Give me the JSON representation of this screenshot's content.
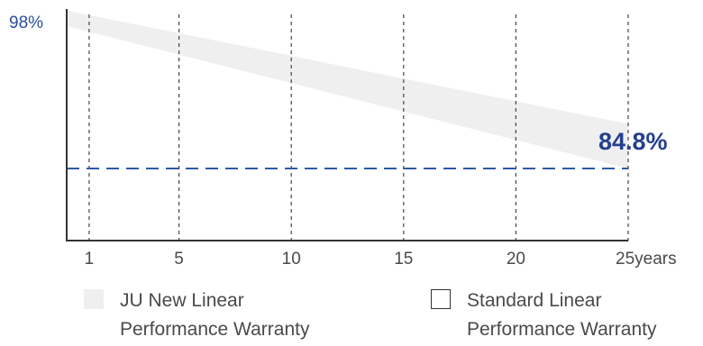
{
  "chart_data": {
    "type": "area",
    "title": "",
    "xlabel": "",
    "ylabel": "",
    "x_unit_label": "years",
    "x_ticks": [
      1,
      5,
      10,
      15,
      20,
      25
    ],
    "y_labels": {
      "top": "98%",
      "end": "84.8%"
    },
    "y_top_value": 98,
    "threshold_value": 84.8,
    "xlim": [
      0,
      25
    ],
    "series": [
      {
        "name": "JU New Linear Performance Warranty",
        "type": "band",
        "x": [
          0,
          25
        ],
        "upper": [
          99,
          88.8
        ],
        "lower": [
          97.6,
          84.8
        ],
        "color": "#efeff0"
      }
    ],
    "threshold_line_color": "#2f5aa8",
    "grid": "vertical-dashed",
    "legend_position": "bottom"
  },
  "legend": {
    "items": [
      {
        "lines": [
          "JU New Linear",
          "Performance Warranty"
        ],
        "swatch": "#efeff0"
      },
      {
        "lines": [
          "Standard Linear",
          "Performance Warranty"
        ],
        "swatch": "#ffffff"
      }
    ]
  }
}
